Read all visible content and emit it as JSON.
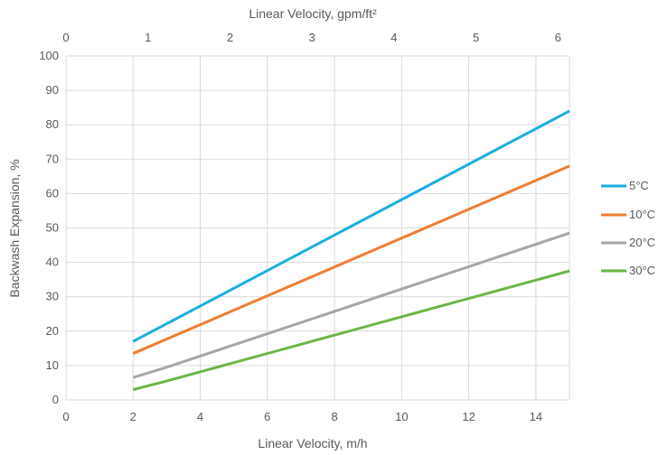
{
  "chart_data": {
    "type": "line",
    "xlabel": "Linear Velocity, m/h",
    "x2label": "Linear Velocity, gpm/ft²",
    "ylabel": "Backwash Expansion, %",
    "xlim": [
      0,
      15
    ],
    "ylim": [
      0,
      100
    ],
    "x2lim": [
      0,
      6.14
    ],
    "x_ticks": [
      0,
      2,
      4,
      6,
      8,
      10,
      12,
      14
    ],
    "x2_ticks": [
      0,
      1,
      2,
      3,
      4,
      5,
      6
    ],
    "y_ticks": [
      0,
      10,
      20,
      30,
      40,
      50,
      60,
      70,
      80,
      90,
      100
    ],
    "grid": true,
    "legend_position": "right",
    "series": [
      {
        "name": "5°C",
        "color": "#1aaee0",
        "x": [
          2,
          15
        ],
        "y": [
          17,
          84
        ]
      },
      {
        "name": "10°C",
        "color": "#ef7d2f",
        "x": [
          2,
          15
        ],
        "y": [
          13.5,
          68
        ]
      },
      {
        "name": "20°C",
        "color": "#a6a6a6",
        "x": [
          2,
          3,
          15
        ],
        "y": [
          6.5,
          9.5,
          48.5
        ]
      },
      {
        "name": "30°C",
        "color": "#6ab645",
        "x": [
          2,
          3,
          15
        ],
        "y": [
          3,
          5.5,
          37.5
        ]
      }
    ]
  }
}
